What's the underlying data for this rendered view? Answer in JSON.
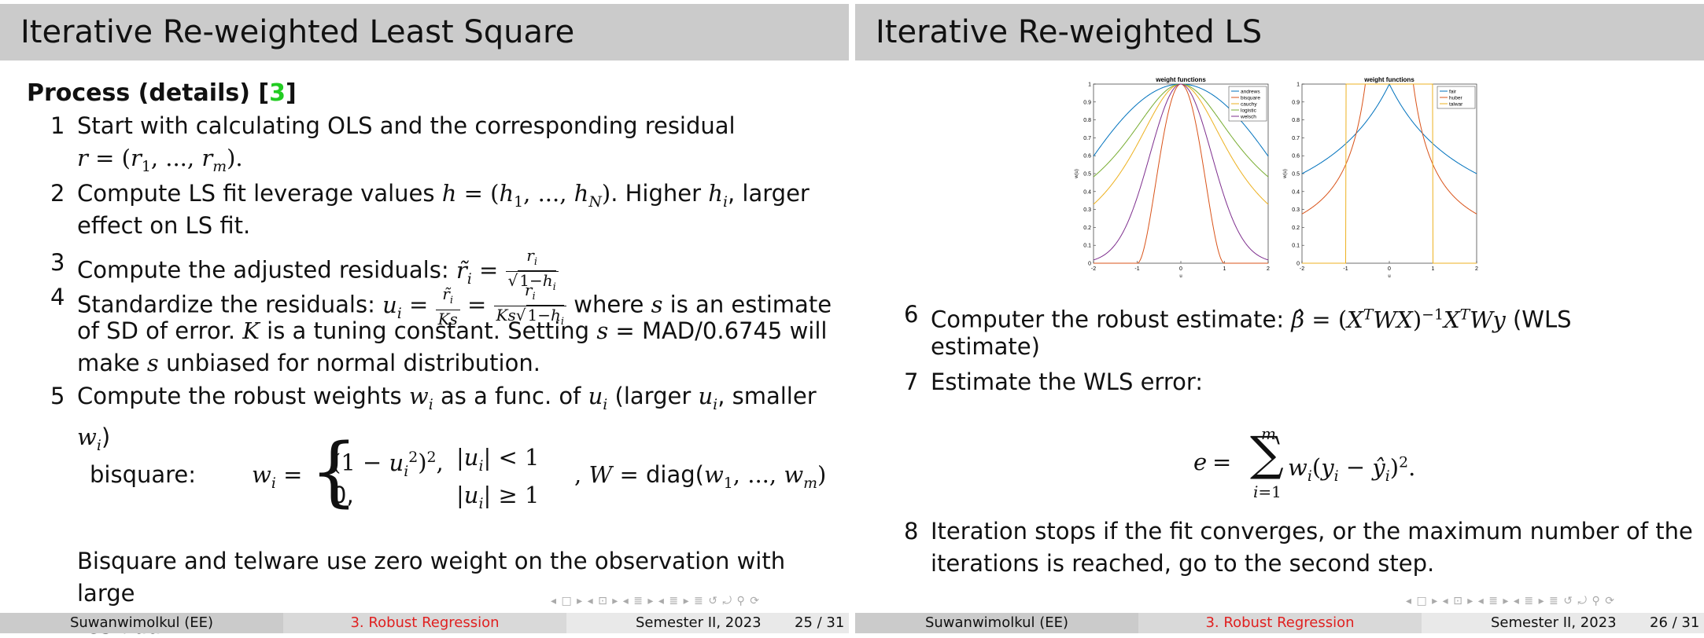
{
  "left": {
    "title": "Iterative Re-weighted Least Square",
    "heading": "Process (details) [",
    "heading_cite": "3",
    "heading_end": "]",
    "items": [
      {
        "n": "1",
        "text": "Start with calculating OLS and the corresponding residual"
      },
      {
        "n": "2",
        "a": "Compute LS fit leverage values",
        "b": ". Higher",
        "c": ", larger",
        "line2": "effect on LS fit."
      },
      {
        "n": "3",
        "text": "Compute the adjusted residuals:"
      },
      {
        "n": "4",
        "a": "Standardize the residuals:",
        "b": "where",
        "c": "is an estimate",
        "l2a": "of SD of error.",
        "l2b": "is a tuning constant. Setting",
        "l2c": "= MAD/0.6745 will",
        "l3a": "make",
        "l3b": "unbiased for normal distribution."
      },
      {
        "n": "5",
        "a": "Compute the robust weights",
        "b": "as a func. of",
        "c": "(larger",
        "d": ", smaller",
        "e": ")"
      }
    ],
    "bisquare_label": "bisquare:",
    "case1_cond": "< 1",
    "case2_val": "0,",
    "case2_cond": "≥ 1",
    "W_diag": "diag(",
    "closing": "Bisquare and telware use zero weight on the observation with large",
    "closing2": "residual.",
    "footer": {
      "author": "Suwanwimolkul  (EE)",
      "section": "3. Robust Regression",
      "date": "Semester II, 2023",
      "page": "25 / 31"
    }
  },
  "right": {
    "title": "Iterative Re-weighted LS",
    "items": [
      {
        "n": "6",
        "a": "Computer the robust estimate:",
        "b": "(WLS",
        "line2": "estimate)"
      },
      {
        "n": "7",
        "text": "Estimate the WLS error:"
      },
      {
        "n": "8",
        "text": "Iteration stops if the fit converges, or the maximum number of the",
        "line2": "iterations is reached, go to the second step."
      }
    ],
    "footer": {
      "author": "Suwanwimolkul  (EE)",
      "section": "3. Robust Regression",
      "date": "Semester II, 2023",
      "page": "26 / 31"
    }
  },
  "nav_symbols": "◂ □ ▸ ◂ ⊡ ▸ ◂ ≣ ▸ ◂ ≣ ▸   ≣   ↺ ⤾ ⚲ ⟳",
  "chart_data": [
    {
      "type": "line",
      "title": "weight functions",
      "xlabel": "u",
      "ylabel": "w(u)",
      "xlim": [
        -2,
        2
      ],
      "ylim": [
        0,
        1
      ],
      "xticks": [
        "-2",
        "-1",
        "0",
        "1",
        "2"
      ],
      "yticks": [
        "0",
        "0.1",
        "0.2",
        "0.3",
        "0.4",
        "0.5",
        "0.6",
        "0.7",
        "0.8",
        "0.9",
        "1"
      ],
      "legend": "top-right",
      "series": [
        {
          "name": "andrews",
          "color": "#0072bd"
        },
        {
          "name": "bisquare",
          "color": "#d95319"
        },
        {
          "name": "cauchy",
          "color": "#edb120"
        },
        {
          "name": "logistic",
          "color": "#77ac30"
        },
        {
          "name": "welsch",
          "color": "#7e2f8e"
        }
      ]
    },
    {
      "type": "line",
      "title": "weight functions",
      "xlabel": "u",
      "ylabel": "w(u)",
      "xlim": [
        -2,
        2
      ],
      "ylim": [
        0,
        1
      ],
      "xticks": [
        "-2",
        "-1",
        "0",
        "1",
        "2"
      ],
      "yticks": [
        "0",
        "0.1",
        "0.2",
        "0.3",
        "0.4",
        "0.5",
        "0.6",
        "0.7",
        "0.8",
        "0.9",
        "1"
      ],
      "legend": "top-right",
      "series": [
        {
          "name": "fair",
          "color": "#0072bd"
        },
        {
          "name": "huber",
          "color": "#d95319"
        },
        {
          "name": "talwar",
          "color": "#edb120"
        }
      ]
    }
  ]
}
